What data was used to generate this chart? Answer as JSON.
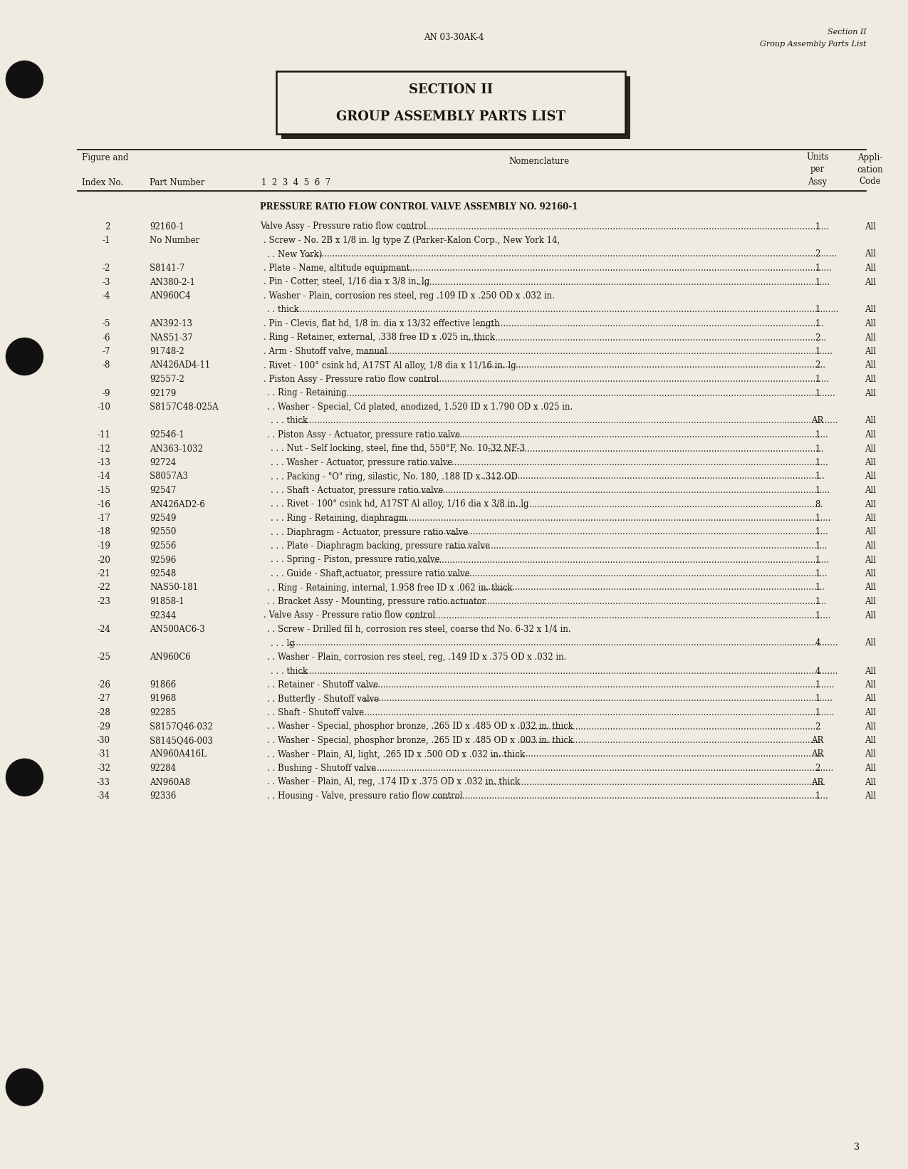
{
  "bg_color": "#f0ebe0",
  "text_color": "#1a1510",
  "header_center": "AN 03-30AK-4",
  "header_right_line1": "Section II",
  "header_right_line2": "Group Assembly Parts List",
  "section_title_line1": "SECTION II",
  "section_title_line2": "GROUP ASSEMBLY PARTS LIST",
  "assembly_title": "PRESSURE RATIO FLOW CONTROL VALVE ASSEMBLY NO. 92160-1",
  "rows": [
    {
      "fig": "2",
      "part": "92160-1",
      "indent": 0,
      "nomenclature": "Valve Assy - Pressure ratio flow control",
      "units": "1",
      "appli": "All"
    },
    {
      "fig": "-1",
      "part": "No Number",
      "indent": 1,
      "nomenclature": "Screw - No. 2B x 1/8 in. lg type Z (Parker-Kalon Corp., New York 14,",
      "units": "",
      "appli": ""
    },
    {
      "fig": "",
      "part": "",
      "indent": 2,
      "nomenclature": "New York)",
      "units": "2",
      "appli": "All"
    },
    {
      "fig": "-2",
      "part": "S8141-7",
      "indent": 1,
      "nomenclature": "Plate - Name, altitude equipment",
      "units": "1",
      "appli": "All"
    },
    {
      "fig": "-3",
      "part": "AN380-2-1",
      "indent": 1,
      "nomenclature": "Pin - Cotter, steel, 1/16 dia x 3/8 in. lg",
      "units": "1",
      "appli": "All"
    },
    {
      "fig": "-4",
      "part": "AN960C4",
      "indent": 1,
      "nomenclature": "Washer - Plain, corrosion res steel, reg .109 ID x .250 OD x .032 in.",
      "units": "",
      "appli": ""
    },
    {
      "fig": "",
      "part": "",
      "indent": 2,
      "nomenclature": "thick",
      "units": "1",
      "appli": "All"
    },
    {
      "fig": "-5",
      "part": "AN392-13",
      "indent": 1,
      "nomenclature": "Pin - Clevis, flat hd, 1/8 in. dia x 13/32 effective length",
      "units": "1",
      "appli": "All"
    },
    {
      "fig": "-6",
      "part": "NAS51-37",
      "indent": 1,
      "nomenclature": "Ring - Retainer, external, .338 free ID x .025 in. thick",
      "units": "2",
      "appli": "All"
    },
    {
      "fig": "-7",
      "part": "91748-2",
      "indent": 1,
      "nomenclature": "Arm - Shutoff valve, manual",
      "units": "1",
      "appli": "All"
    },
    {
      "fig": "-8",
      "part": "AN426AD4-11",
      "indent": 1,
      "nomenclature": "Rivet - 100° csink hd, A17ST Al alloy, 1/8 dia x 11/16 in. lg",
      "units": "2",
      "appli": "All"
    },
    {
      "fig": "",
      "part": "92557-2",
      "indent": 1,
      "nomenclature": "Piston Assy - Pressure ratio flow control",
      "units": "1",
      "appli": "All"
    },
    {
      "fig": "-9",
      "part": "92179",
      "indent": 2,
      "nomenclature": "Ring - Retaining",
      "units": "1",
      "appli": "All"
    },
    {
      "fig": "-10",
      "part": "S8157C48-025A",
      "indent": 2,
      "nomenclature": "Washer - Special, Cd plated, anodized, 1.520 ID x 1.790 OD x .025 in.",
      "units": "",
      "appli": ""
    },
    {
      "fig": "",
      "part": "",
      "indent": 3,
      "nomenclature": "thick",
      "units": "AR",
      "appli": "All"
    },
    {
      "fig": "-11",
      "part": "92546-1",
      "indent": 2,
      "nomenclature": "Piston Assy - Actuator, pressure ratio valve",
      "units": "1",
      "appli": "All"
    },
    {
      "fig": "-12",
      "part": "AN363-1032",
      "indent": 3,
      "nomenclature": "Nut - Self locking, steel, fine thd, 550°F, No. 10-32 NF-3",
      "units": "1",
      "appli": "All"
    },
    {
      "fig": "-13",
      "part": "92724",
      "indent": 3,
      "nomenclature": "Washer - Actuator, pressure ratio valve",
      "units": "1",
      "appli": "All"
    },
    {
      "fig": "-14",
      "part": "S8057A3",
      "indent": 3,
      "nomenclature": "Packing - \"O\" ring, silastic, No. 180, .188 ID x .312 OD",
      "units": "1",
      "appli": "All"
    },
    {
      "fig": "-15",
      "part": "92547",
      "indent": 3,
      "nomenclature": "Shaft - Actuator, pressure ratio valve",
      "units": "1",
      "appli": "All"
    },
    {
      "fig": "-16",
      "part": "AN426AD2-6",
      "indent": 3,
      "nomenclature": "Rivet - 100° csink hd, A17ST Al alloy, 1/16 dia x 3/8 in. lg",
      "units": "8",
      "appli": "All"
    },
    {
      "fig": "-17",
      "part": "92549",
      "indent": 3,
      "nomenclature": "Ring - Retaining, diaphragm",
      "units": "1",
      "appli": "All"
    },
    {
      "fig": "-18",
      "part": "92550",
      "indent": 3,
      "nomenclature": "Diaphragm - Actuator, pressure ratio valve",
      "units": "1",
      "appli": "All"
    },
    {
      "fig": "-19",
      "part": "92556",
      "indent": 3,
      "nomenclature": "Plate - Diaphragm backing, pressure ratio valve",
      "units": "1",
      "appli": "All"
    },
    {
      "fig": "-20",
      "part": "92596",
      "indent": 3,
      "nomenclature": "Spring - Piston, pressure ratio valve",
      "units": "1",
      "appli": "All"
    },
    {
      "fig": "-21",
      "part": "92548",
      "indent": 3,
      "nomenclature": "Guide - Shaft,actuator, pressure ratio valve",
      "units": "1",
      "appli": "All"
    },
    {
      "fig": "-22",
      "part": "NAS50-181",
      "indent": 2,
      "nomenclature": "Ring - Retaining, internal, 1.958 free ID x .062 in. thick",
      "units": "1",
      "appli": "All"
    },
    {
      "fig": "-23",
      "part": "91858-1",
      "indent": 2,
      "nomenclature": "Bracket Assy - Mounting, pressure ratio actuator",
      "units": "1",
      "appli": "All"
    },
    {
      "fig": "",
      "part": "92344",
      "indent": 1,
      "nomenclature": "Valve Assy - Pressure ratio flow control",
      "units": "1",
      "appli": "All"
    },
    {
      "fig": "-24",
      "part": "AN500AC6-3",
      "indent": 2,
      "nomenclature": "Screw - Drilled fil h, corrosion res steel, coarse thd No. 6-32 x 1/4 in.",
      "units": "",
      "appli": ""
    },
    {
      "fig": "",
      "part": "",
      "indent": 3,
      "nomenclature": "lg",
      "units": "4",
      "appli": "All"
    },
    {
      "fig": "-25",
      "part": "AN960C6",
      "indent": 2,
      "nomenclature": "Washer - Plain, corrosion res steel, reg, .149 ID x .375 OD x .032 in.",
      "units": "",
      "appli": ""
    },
    {
      "fig": "",
      "part": "",
      "indent": 3,
      "nomenclature": "thick",
      "units": "4",
      "appli": "All"
    },
    {
      "fig": "-26",
      "part": "91866",
      "indent": 2,
      "nomenclature": "Retainer - Shutoff valve",
      "units": "1",
      "appli": "All"
    },
    {
      "fig": "-27",
      "part": "91968",
      "indent": 2,
      "nomenclature": "Butterfly - Shutoff valve",
      "units": "1",
      "appli": "All"
    },
    {
      "fig": "-28",
      "part": "92285",
      "indent": 2,
      "nomenclature": "Shaft - Shutoff valve",
      "units": "1",
      "appli": "All"
    },
    {
      "fig": "-29",
      "part": "S8157Q46-032",
      "indent": 2,
      "nomenclature": "Washer - Special, phosphor bronze, .265 ID x .485 OD x .032 in. thick",
      "units": "2",
      "appli": "All"
    },
    {
      "fig": "-30",
      "part": "S8145Q46-003",
      "indent": 2,
      "nomenclature": "Washer - Special, phosphor bronze, .265 ID x .485 OD x .003 in. thick",
      "units": "AR",
      "appli": "All"
    },
    {
      "fig": "-31",
      "part": "AN960A416L",
      "indent": 2,
      "nomenclature": "Washer - Plain, Al, light, .265 ID x .500 OD x .032 in. thick",
      "units": "AR",
      "appli": "All"
    },
    {
      "fig": "-32",
      "part": "92284",
      "indent": 2,
      "nomenclature": "Bushing - Shutoff valve",
      "units": "2",
      "appli": "All"
    },
    {
      "fig": "-33",
      "part": "AN960A8",
      "indent": 2,
      "nomenclature": "Washer - Plain, Al, reg, .174 ID x .375 OD x .032 in. thick",
      "units": "AR",
      "appli": "All"
    },
    {
      "fig": "-34",
      "part": "92336",
      "indent": 2,
      "nomenclature": "Housing - Valve, pressure ratio flow control",
      "units": "1",
      "appli": "All"
    }
  ],
  "page_number": "3",
  "puncher_holes_frac": [
    {
      "xf": 0.027,
      "yf": 0.068
    },
    {
      "xf": 0.027,
      "yf": 0.305
    },
    {
      "xf": 0.027,
      "yf": 0.665
    },
    {
      "xf": 0.027,
      "yf": 0.93
    }
  ]
}
